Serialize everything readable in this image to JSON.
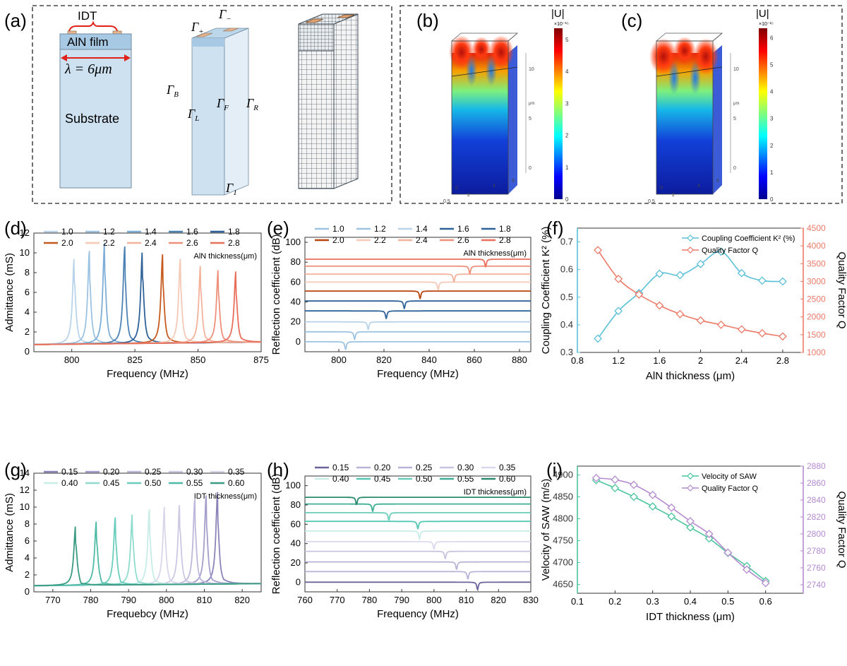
{
  "panel_letters": {
    "a": "(a)",
    "b": "(b)",
    "c": "(c)",
    "d": "(d)",
    "e": "(e)",
    "f": "(f)",
    "g": "(g)",
    "h": "(h)",
    "i": "(i)"
  },
  "schematic": {
    "idt_label": "IDT",
    "film_label": "AlN film",
    "wavelength_label": "λ = 6μm",
    "substrate_label": "Substrate",
    "boundaries": {
      "plus": "Γ+",
      "minus": "Γ−",
      "B": "ΓB",
      "L": "ΓL",
      "F": "ΓF",
      "R": "ΓR",
      "one": "Γ1"
    }
  },
  "fem": {
    "colorbar_title": "|U|",
    "b_scale": "×10⁻¹⁵",
    "c_scale": "×10⁻¹⁵",
    "b_ticks": [
      "5",
      "4",
      "3",
      "2",
      "1",
      "0"
    ],
    "c_ticks": [
      "6",
      "5",
      "4",
      "3",
      "2",
      "1",
      "0"
    ],
    "axis_ticks": [
      "10",
      "5",
      "0"
    ],
    "axis_unit": "μm",
    "base_ticks": [
      "0.5",
      "0",
      "2",
      "4",
      "6"
    ]
  },
  "chart_data": [
    {
      "id": "d",
      "type": "line",
      "xlabel": "Frequency (MHz)",
      "ylabel": "Admittance (mS)",
      "xlim": [
        785,
        875
      ],
      "ylim": [
        0,
        12
      ],
      "xticks": [
        800,
        825,
        850,
        875
      ],
      "yticks": [
        0,
        2,
        4,
        6,
        8,
        10,
        12
      ],
      "legend_title": "AlN thickness(μm)",
      "series": [
        {
          "name": "1.0",
          "color": "#b9d4ea",
          "f_res": 801,
          "peak": 9.1
        },
        {
          "name": "1.2",
          "color": "#9cc3e2",
          "f_res": 807,
          "peak": 9.6
        },
        {
          "name": "1.4",
          "color": "#7eaed6",
          "f_res": 813,
          "peak": 10.5
        },
        {
          "name": "1.6",
          "color": "#4d82b4",
          "f_res": 821,
          "peak": 10.0
        },
        {
          "name": "1.8",
          "color": "#2f6298",
          "f_res": 828,
          "peak": 9.7
        },
        {
          "name": "2.0",
          "color": "#c65a1e",
          "f_res": 836,
          "peak": 9.2
        },
        {
          "name": "2.2",
          "color": "#f5c9b6",
          "f_res": 843,
          "peak": 8.7
        },
        {
          "name": "2.4",
          "color": "#f3b29b",
          "f_res": 851,
          "peak": 8.1
        },
        {
          "name": "2.6",
          "color": "#ee907a",
          "f_res": 858,
          "peak": 7.6
        },
        {
          "name": "2.8",
          "color": "#e86f5c",
          "f_res": 865,
          "peak": 7.4
        }
      ]
    },
    {
      "id": "e",
      "type": "line",
      "xlabel": "Frequency (MHz)",
      "ylabel": "Reflection coefficient (dB)",
      "xlim": [
        785,
        885
      ],
      "ylim": [
        -10,
        105
      ],
      "xticks": [
        800,
        820,
        840,
        860,
        880
      ],
      "yticks": [
        0,
        20,
        40,
        60,
        80,
        100
      ],
      "legend_title": "AlN thickness(μm)",
      "series": [
        {
          "name": "1.0",
          "color": "#9cc3e2",
          "offset": 0,
          "dip_f": 803
        },
        {
          "name": "1.2",
          "color": "#9cc3e2",
          "offset": 10,
          "dip_f": 807
        },
        {
          "name": "1.4",
          "color": "#b9d4ea",
          "offset": 20,
          "dip_f": 813
        },
        {
          "name": "1.6",
          "color": "#2f6298",
          "offset": 31,
          "dip_f": 821
        },
        {
          "name": "1.8",
          "color": "#2f6298",
          "offset": 41,
          "dip_f": 829
        },
        {
          "name": "2.0",
          "color": "#b8440f",
          "offset": 51,
          "dip_f": 836
        },
        {
          "name": "2.2",
          "color": "#f5c9b6",
          "offset": 60,
          "dip_f": 844
        },
        {
          "name": "2.4",
          "color": "#f3b29b",
          "offset": 68,
          "dip_f": 851
        },
        {
          "name": "2.6",
          "color": "#ee907a",
          "offset": 76,
          "dip_f": 858
        },
        {
          "name": "2.8",
          "color": "#e86f5c",
          "offset": 83,
          "dip_f": 865
        }
      ]
    },
    {
      "id": "f",
      "type": "line",
      "xlabel": "AlN thickness (μm)",
      "ylabel_left": "Coupling Coefficient K² (%)",
      "ylabel_right": "Quality Factor Q",
      "xlim": [
        0.8,
        3.0
      ],
      "ylim_left": [
        0.3,
        0.75
      ],
      "ylim_right": [
        1000,
        4500
      ],
      "xticks": [
        0.8,
        1.2,
        1.6,
        2.0,
        2.4,
        2.8
      ],
      "yticks_left": [
        0.3,
        0.4,
        0.5,
        0.6,
        0.7
      ],
      "yticks_right": [
        1000,
        1500,
        2000,
        2500,
        3000,
        3500,
        4000,
        4500
      ],
      "x": [
        1.0,
        1.2,
        1.4,
        1.6,
        1.8,
        2.0,
        2.2,
        2.4,
        2.6,
        2.8
      ],
      "series": [
        {
          "name": "Coupling Coefficient K² (%)",
          "axis": "left",
          "color": "#5bc0d8",
          "values": [
            0.35,
            0.45,
            0.515,
            0.585,
            0.58,
            0.62,
            0.665,
            0.587,
            0.56,
            0.557
          ]
        },
        {
          "name": "Quality Factor Q",
          "axis": "right",
          "color": "#ec7a68",
          "values": [
            3880,
            3070,
            2630,
            2320,
            2080,
            1900,
            1780,
            1650,
            1540,
            1450
          ]
        }
      ]
    },
    {
      "id": "g",
      "type": "line",
      "xlabel": "Frequebcy (MHz)",
      "ylabel": "Admittance (mS)",
      "xlim": [
        765,
        825
      ],
      "ylim": [
        0,
        14
      ],
      "xticks": [
        770,
        780,
        790,
        800,
        810,
        820
      ],
      "yticks": [
        0,
        2,
        4,
        6,
        8,
        10,
        12,
        14
      ],
      "legend_title": "IDT thickness(μm)",
      "series": [
        {
          "name": "0.15",
          "color": "#8b84b8",
          "f_res": 813.5,
          "peak": 11.0
        },
        {
          "name": "0.20",
          "color": "#a49ecb",
          "f_res": 810.5,
          "peak": 10.6
        },
        {
          "name": "0.25",
          "color": "#bdb8dc",
          "f_res": 807.5,
          "peak": 10.2
        },
        {
          "name": "0.30",
          "color": "#ccc8e4",
          "f_res": 803.5,
          "peak": 9.8
        },
        {
          "name": "0.35",
          "color": "#d9d6ec",
          "f_res": 799.5,
          "peak": 9.4
        },
        {
          "name": "0.40",
          "color": "#c8ece6",
          "f_res": 795.5,
          "peak": 9.0
        },
        {
          "name": "0.45",
          "color": "#8fdccf",
          "f_res": 791,
          "peak": 8.6
        },
        {
          "name": "0.50",
          "color": "#6bcdbc",
          "f_res": 786.5,
          "peak": 8.1
        },
        {
          "name": "0.55",
          "color": "#4fbba6",
          "f_res": 781.5,
          "peak": 7.7
        },
        {
          "name": "0.60",
          "color": "#3a9a82",
          "f_res": 776,
          "peak": 7.2
        }
      ]
    },
    {
      "id": "h",
      "type": "line",
      "xlabel": "Frequency (MHz)",
      "ylabel": "Reflection coefficient (dB)",
      "xlim": [
        760,
        830
      ],
      "ylim": [
        -10,
        110
      ],
      "xticks": [
        760,
        770,
        780,
        790,
        800,
        810,
        820,
        830
      ],
      "yticks": [
        0,
        20,
        40,
        60,
        80,
        100
      ],
      "legend_title": "IDT thickness(μm)",
      "series": [
        {
          "name": "0.15",
          "color": "#6a6399",
          "offset": 0,
          "dip_f": 813.5
        },
        {
          "name": "0.20",
          "color": "#b9b4d8",
          "offset": 11,
          "dip_f": 810.5
        },
        {
          "name": "0.25",
          "color": "#b9b4d8",
          "offset": 21,
          "dip_f": 807
        },
        {
          "name": "0.30",
          "color": "#c8c4e0",
          "offset": 32,
          "dip_f": 803.5
        },
        {
          "name": "0.35",
          "color": "#dcd9ee",
          "offset": 42,
          "dip_f": 800
        },
        {
          "name": "0.40",
          "color": "#c8ece6",
          "offset": 53,
          "dip_f": 795.5
        },
        {
          "name": "0.45",
          "color": "#55c7b4",
          "offset": 63,
          "dip_f": 795
        },
        {
          "name": "0.50",
          "color": "#6bcdbc",
          "offset": 72,
          "dip_f": 786
        },
        {
          "name": "0.55",
          "color": "#3fae95",
          "offset": 81,
          "dip_f": 781
        },
        {
          "name": "0.60",
          "color": "#2c8a6e",
          "offset": 88,
          "dip_f": 776
        }
      ]
    },
    {
      "id": "i",
      "type": "line",
      "xlabel": "IDT thickness (μm)",
      "ylabel_left": "Velocity of SAW (m/s)",
      "ylabel_right": "Quality Factor Q",
      "xlim": [
        0.1,
        0.7
      ],
      "ylim_left": [
        4630,
        4920
      ],
      "ylim_right": [
        2730,
        2880
      ],
      "xticks": [
        0.1,
        0.2,
        0.3,
        0.4,
        0.5,
        0.6
      ],
      "yticks_left": [
        4650,
        4700,
        4750,
        4800,
        4850,
        4900
      ],
      "yticks_right": [
        2740,
        2760,
        2780,
        2800,
        2820,
        2840,
        2860,
        2880
      ],
      "x": [
        0.15,
        0.2,
        0.25,
        0.3,
        0.35,
        0.4,
        0.45,
        0.5,
        0.55,
        0.6
      ],
      "series": [
        {
          "name": "Velocity of SAW",
          "axis": "left",
          "color": "#4cc59c",
          "values": [
            4888,
            4870,
            4850,
            4828,
            4805,
            4780,
            4755,
            4722,
            4692,
            4658
          ]
        },
        {
          "name": "Quality Factor Q",
          "axis": "right",
          "color": "#b48ad0",
          "values": [
            2866,
            2864,
            2858,
            2846,
            2831,
            2815,
            2800,
            2778,
            2758,
            2742
          ]
        }
      ]
    }
  ]
}
